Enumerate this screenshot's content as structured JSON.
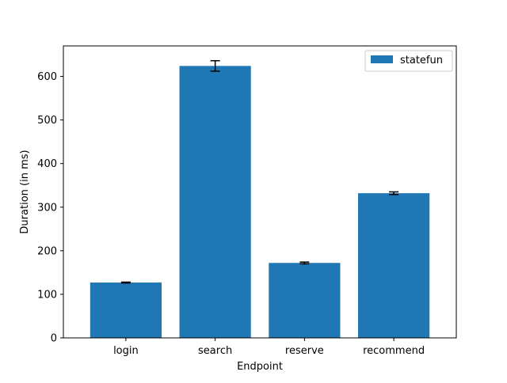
{
  "chart_data": {
    "type": "bar",
    "title": "",
    "xlabel": "Endpoint",
    "ylabel": "Duration (in ms)",
    "categories": [
      "login",
      "search",
      "reserve",
      "recommend"
    ],
    "series": [
      {
        "name": "statefun",
        "values": [
          127,
          624,
          172,
          332
        ],
        "errors": [
          1,
          12,
          2,
          3
        ],
        "color": "#1f77b4"
      }
    ],
    "ylim": [
      0,
      670
    ],
    "yticks": [
      0,
      100,
      200,
      300,
      400,
      500,
      600
    ],
    "grid": false,
    "legend_position": "top-right"
  }
}
